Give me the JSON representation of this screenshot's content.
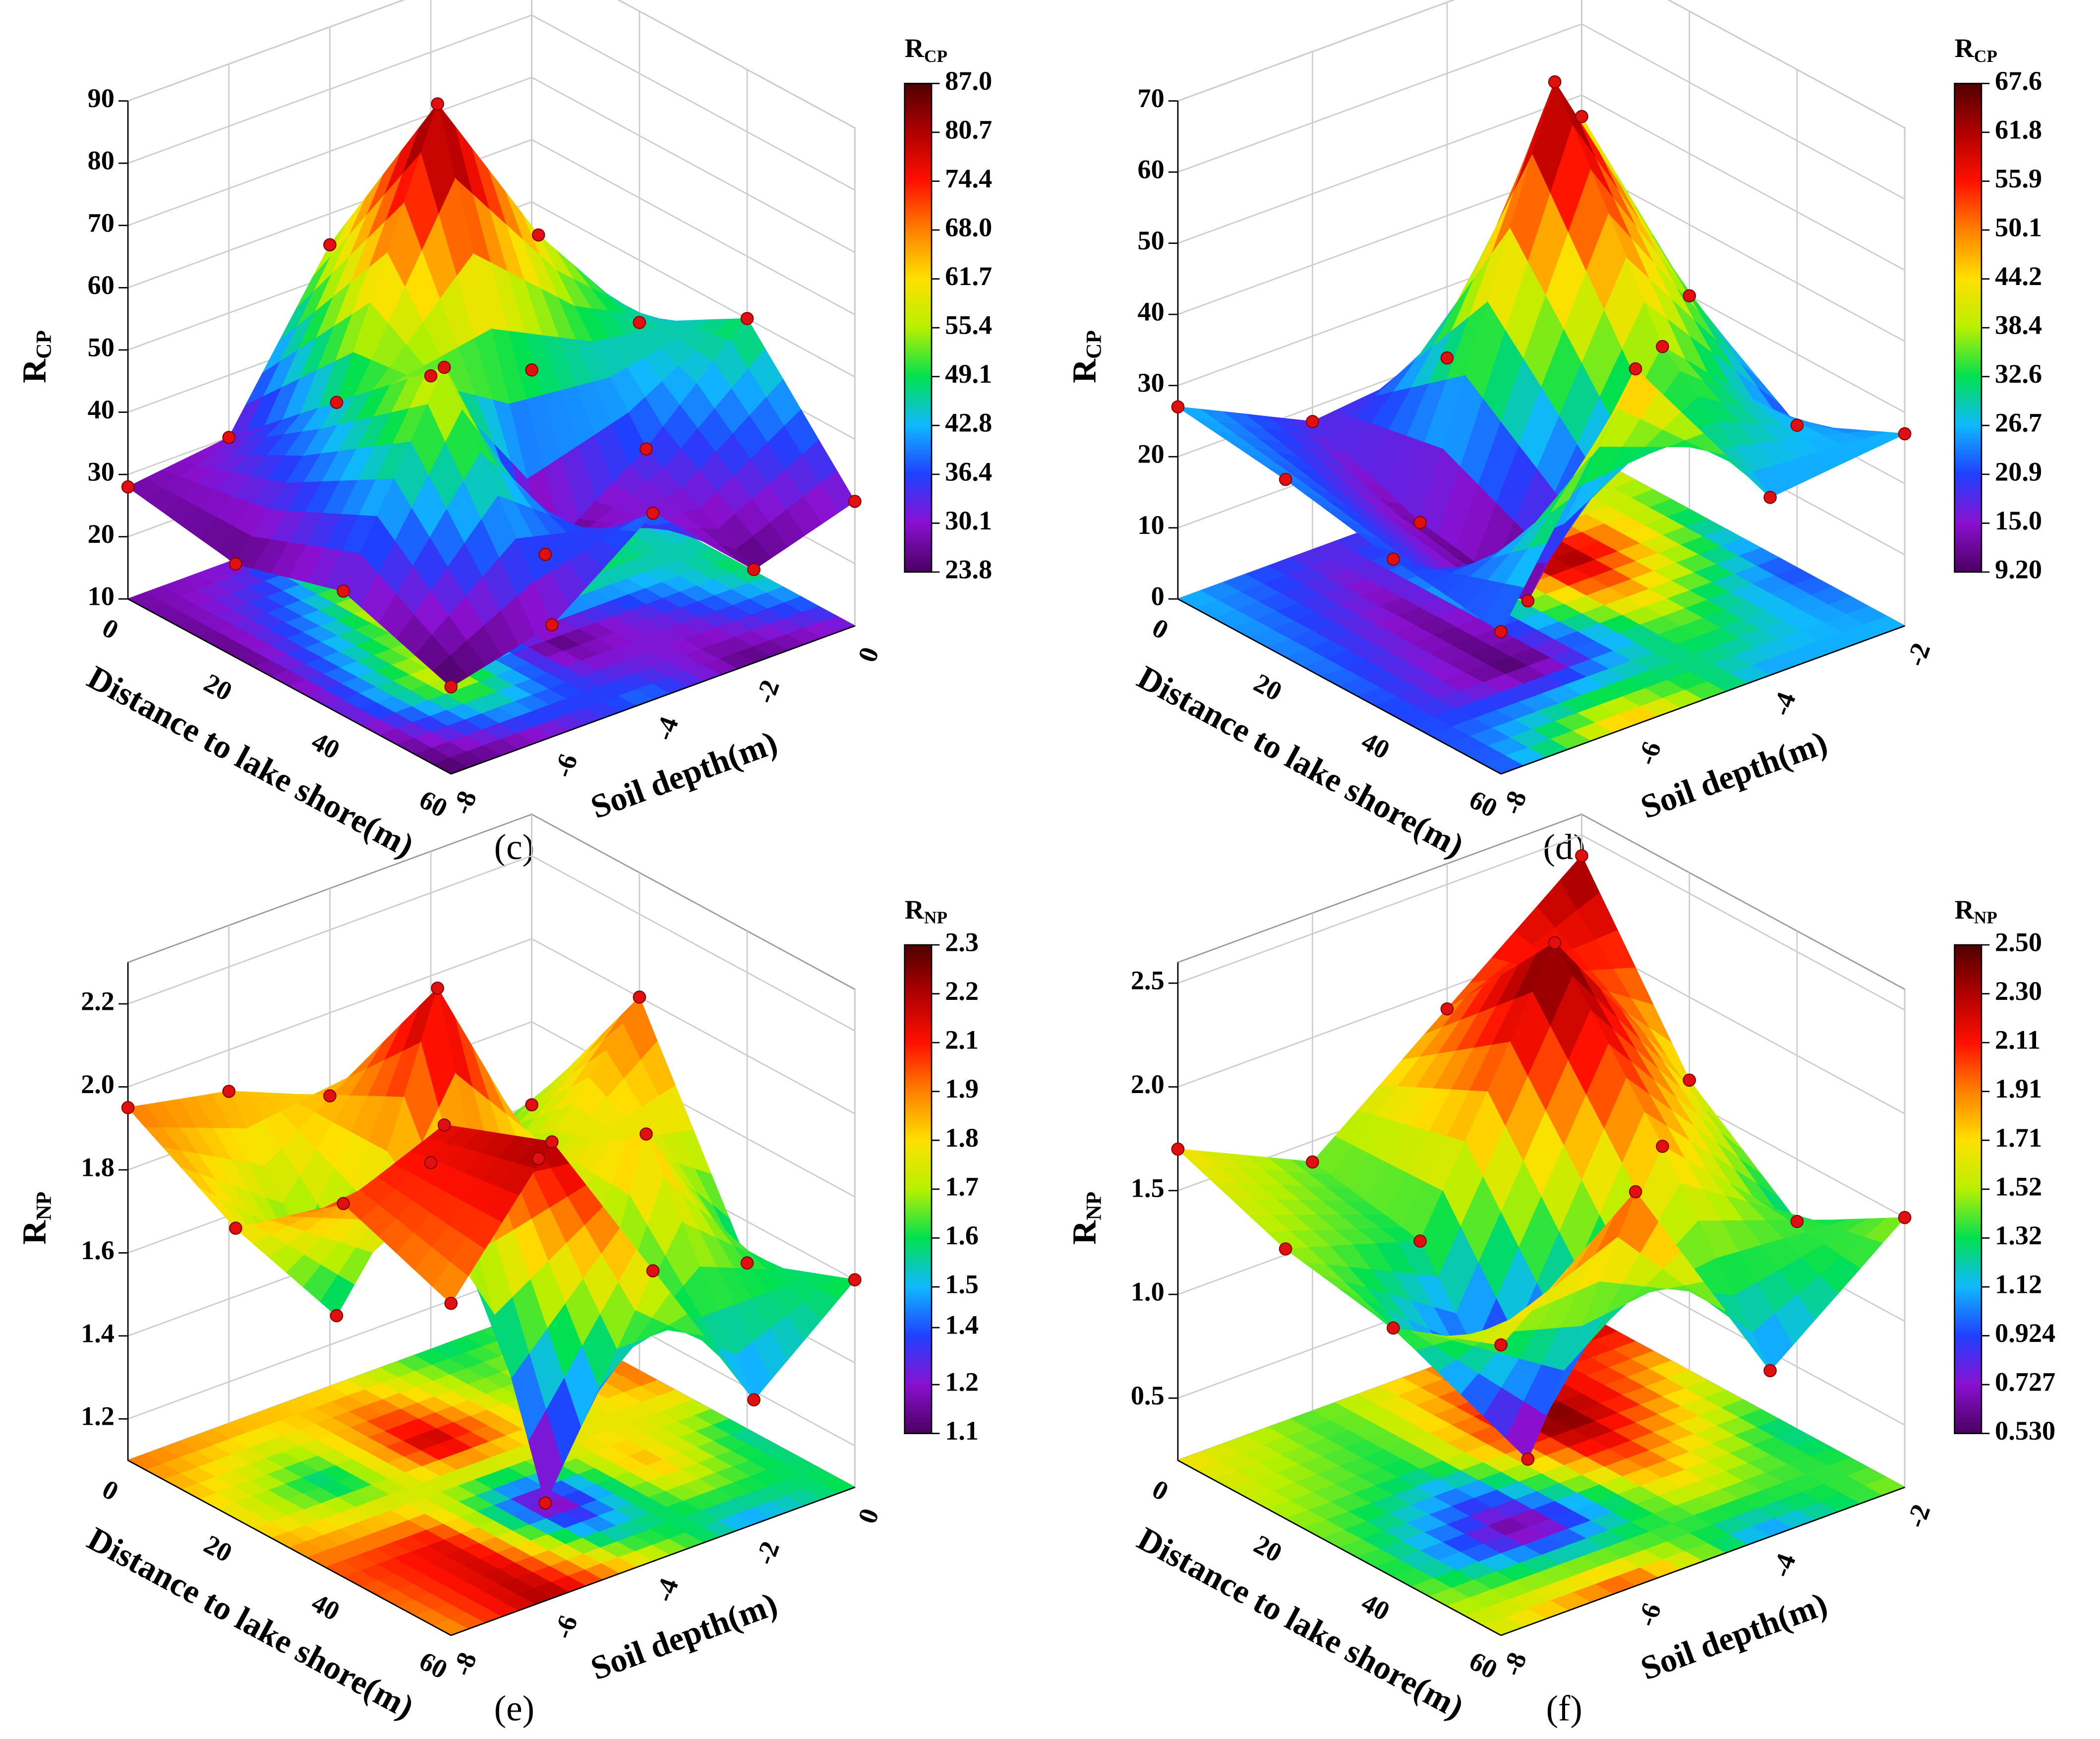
{
  "chart_data": [
    {
      "type": "surface3d",
      "panel_label": "(c)",
      "zlabel": [
        "R",
        "CP"
      ],
      "colorbar_label": [
        "R",
        "CP"
      ],
      "xlabel": "Distance to lake shore(m)",
      "ylabel": "Soil depth(m)",
      "x": [
        0,
        20,
        40,
        60
      ],
      "y": [
        0,
        -2,
        -4,
        -6,
        -8
      ],
      "values": [
        [
          23,
          28,
          55,
          30,
          28
        ],
        [
          40,
          60,
          87,
          45,
          25
        ],
        [
          50,
          35,
          24,
          60,
          30
        ],
        [
          30,
          25,
          40,
          28,
          24
        ]
      ],
      "xlim": [
        0,
        60
      ],
      "xticks": [
        0,
        20,
        40,
        60
      ],
      "ylim": [
        -8,
        0
      ],
      "yticks": [
        0,
        -2,
        -4,
        -6,
        -8
      ],
      "zlim": [
        10,
        90
      ],
      "zticks": [
        10,
        20,
        30,
        40,
        50,
        60,
        70,
        80,
        90
      ],
      "clim": [
        23.8,
        87
      ],
      "cticks": [
        23.8,
        {
          "value": 30.12,
          "label": "30.1"
        },
        {
          "value": 36.44,
          "label": "36.4"
        },
        {
          "value": 42.76,
          "label": "42.8"
        },
        {
          "value": 49.08,
          "label": "49.1"
        },
        55.4,
        {
          "value": 61.72,
          "label": "61.7"
        },
        {
          "value": 68.04,
          "label": "68.0"
        },
        {
          "value": 74.36,
          "label": "74.4"
        },
        {
          "value": 80.68,
          "label": "80.7"
        },
        {
          "value": 87,
          "label": "87.0"
        }
      ],
      "colormap": [
        "#4a0060",
        "#8a10d0",
        "#2040ff",
        "#10b8ff",
        "#00e050",
        "#b8f000",
        "#ffe000",
        "#ff8000",
        "#ff1000",
        "#b00000",
        "#500000"
      ],
      "marker_color": "#e01010"
    },
    {
      "type": "surface3d",
      "panel_label": "(d)",
      "zlabel": [
        "R",
        "CP"
      ],
      "colorbar_label": [
        "R",
        "CP"
      ],
      "xlabel": "Distance to lake shore(m)",
      "ylabel": "Soil depth(m)",
      "x": [
        0,
        20,
        40,
        60
      ],
      "y": [
        -2,
        -4,
        -6,
        -8
      ],
      "values": [
        [
          47,
          20,
          18,
          27
        ],
        [
          30,
          67,
          12,
          25
        ],
        [
          20,
          38,
          9.2,
          22
        ],
        [
          27,
          25,
          50,
          20
        ]
      ],
      "xlim": [
        0,
        60
      ],
      "xticks": [
        0,
        20,
        40,
        60
      ],
      "ylim": [
        -8,
        -2
      ],
      "yticks": [
        -2,
        -4,
        -6,
        -8
      ],
      "zlim": [
        0,
        70
      ],
      "zticks": [
        0,
        10,
        20,
        30,
        40,
        50,
        60,
        70
      ],
      "clim": [
        9.2,
        67.6
      ],
      "cticks": [
        {
          "value": 9.2,
          "label": "9.20"
        },
        {
          "value": 15.04,
          "label": "15.0"
        },
        {
          "value": 20.88,
          "label": "20.9"
        },
        {
          "value": 26.72,
          "label": "26.7"
        },
        {
          "value": 32.56,
          "label": "32.6"
        },
        38.4,
        {
          "value": 44.24,
          "label": "44.2"
        },
        {
          "value": 50.08,
          "label": "50.1"
        },
        {
          "value": 55.92,
          "label": "55.9"
        },
        {
          "value": 61.76,
          "label": "61.8"
        },
        67.6
      ],
      "colormap": [
        "#4a0060",
        "#8a10d0",
        "#2040ff",
        "#10b8ff",
        "#00e050",
        "#b8f000",
        "#ffe000",
        "#ff8000",
        "#ff1000",
        "#b00000",
        "#500000"
      ],
      "marker_color": "#e01010"
    },
    {
      "type": "surface3d",
      "panel_label": "(e)",
      "zlabel": [
        "R",
        "NP"
      ],
      "colorbar_label": [
        "R",
        "NP"
      ],
      "xlabel": "Distance to lake shore(m)",
      "ylabel": "Soil depth(m)",
      "x": [
        0,
        20,
        40,
        60
      ],
      "y": [
        0,
        -2,
        -4,
        -6,
        -8
      ],
      "values": [
        [
          1.6,
          1.55,
          1.8,
          1.9,
          1.95
        ],
        [
          2.0,
          1.7,
          2.2,
          1.5,
          1.8
        ],
        [
          1.5,
          1.9,
          1.1,
          2.1,
          2.0
        ],
        [
          1.6,
          1.4,
          1.8,
          2.2,
          1.9
        ]
      ],
      "xlim": [
        0,
        60
      ],
      "xticks": [
        0,
        20,
        40,
        60
      ],
      "ylim": [
        -8,
        0
      ],
      "yticks": [
        0,
        -2,
        -4,
        -6,
        -8
      ],
      "zlim": [
        1.1,
        2.3
      ],
      "zticks": [
        1.2,
        1.4,
        1.6,
        1.8,
        {
          "value": 2,
          "label": "2.0"
        },
        2.2
      ],
      "clim": [
        1.1,
        2.3
      ],
      "cticks": [
        1.1,
        {
          "value": 1.22,
          "label": "1.2"
        },
        {
          "value": 1.36,
          "label": "1.4"
        },
        {
          "value": 1.46,
          "label": "1.5"
        },
        {
          "value": 1.58,
          "label": "1.6"
        },
        1.7,
        {
          "value": 1.82,
          "label": "1.8"
        },
        {
          "value": 1.94,
          "label": "1.9"
        },
        {
          "value": 2.06,
          "label": "2.1"
        },
        {
          "value": 2.18,
          "label": "2.2"
        },
        2.3
      ],
      "colormap": [
        "#4a0060",
        "#8a10d0",
        "#2040ff",
        "#10b8ff",
        "#00e050",
        "#b8f000",
        "#ffe000",
        "#ff8000",
        "#ff1000",
        "#b00000",
        "#500000"
      ],
      "marker_color": "#e01010"
    },
    {
      "type": "surface3d",
      "panel_label": "(f)",
      "zlabel": [
        "R",
        "NP"
      ],
      "colorbar_label": [
        "R",
        "NP"
      ],
      "xlabel": "Distance to lake shore(m)",
      "ylabel": "Soil depth(m)",
      "x": [
        0,
        20,
        40,
        60
      ],
      "y": [
        -2,
        -4,
        -6,
        -8
      ],
      "values": [
        [
          2.4,
          1.9,
          1.4,
          1.7
        ],
        [
          1.6,
          2.5,
          1.3,
          1.5
        ],
        [
          1.2,
          1.8,
          0.53,
          1.4
        ],
        [
          1.5,
          1.0,
          2.1,
          1.6
        ]
      ],
      "xlim": [
        0,
        60
      ],
      "xticks": [
        0,
        20,
        40,
        60
      ],
      "ylim": [
        -8,
        -2
      ],
      "yticks": [
        -2,
        -4,
        -6,
        -8
      ],
      "zlim": [
        0.2,
        2.6
      ],
      "zticks": [
        0.5,
        {
          "value": 1,
          "label": "1.0"
        },
        1.5,
        {
          "value": 2,
          "label": "2.0"
        },
        2.5
      ],
      "clim": [
        0.53,
        2.5
      ],
      "cticks": [
        {
          "value": 0.53,
          "label": "0.530"
        },
        0.727,
        0.924,
        {
          "value": 1.121,
          "label": "1.12"
        },
        {
          "value": 1.318,
          "label": "1.32"
        },
        {
          "value": 1.515,
          "label": "1.52"
        },
        {
          "value": 1.712,
          "label": "1.71"
        },
        {
          "value": 1.909,
          "label": "1.91"
        },
        {
          "value": 2.106,
          "label": "2.11"
        },
        {
          "value": 2.303,
          "label": "2.30"
        },
        {
          "value": 2.5,
          "label": "2.50"
        }
      ],
      "colormap": [
        "#4a0060",
        "#8a10d0",
        "#2040ff",
        "#10b8ff",
        "#00e050",
        "#b8f000",
        "#ffe000",
        "#ff8000",
        "#ff1000",
        "#b00000",
        "#500000"
      ],
      "marker_color": "#e01010"
    }
  ]
}
